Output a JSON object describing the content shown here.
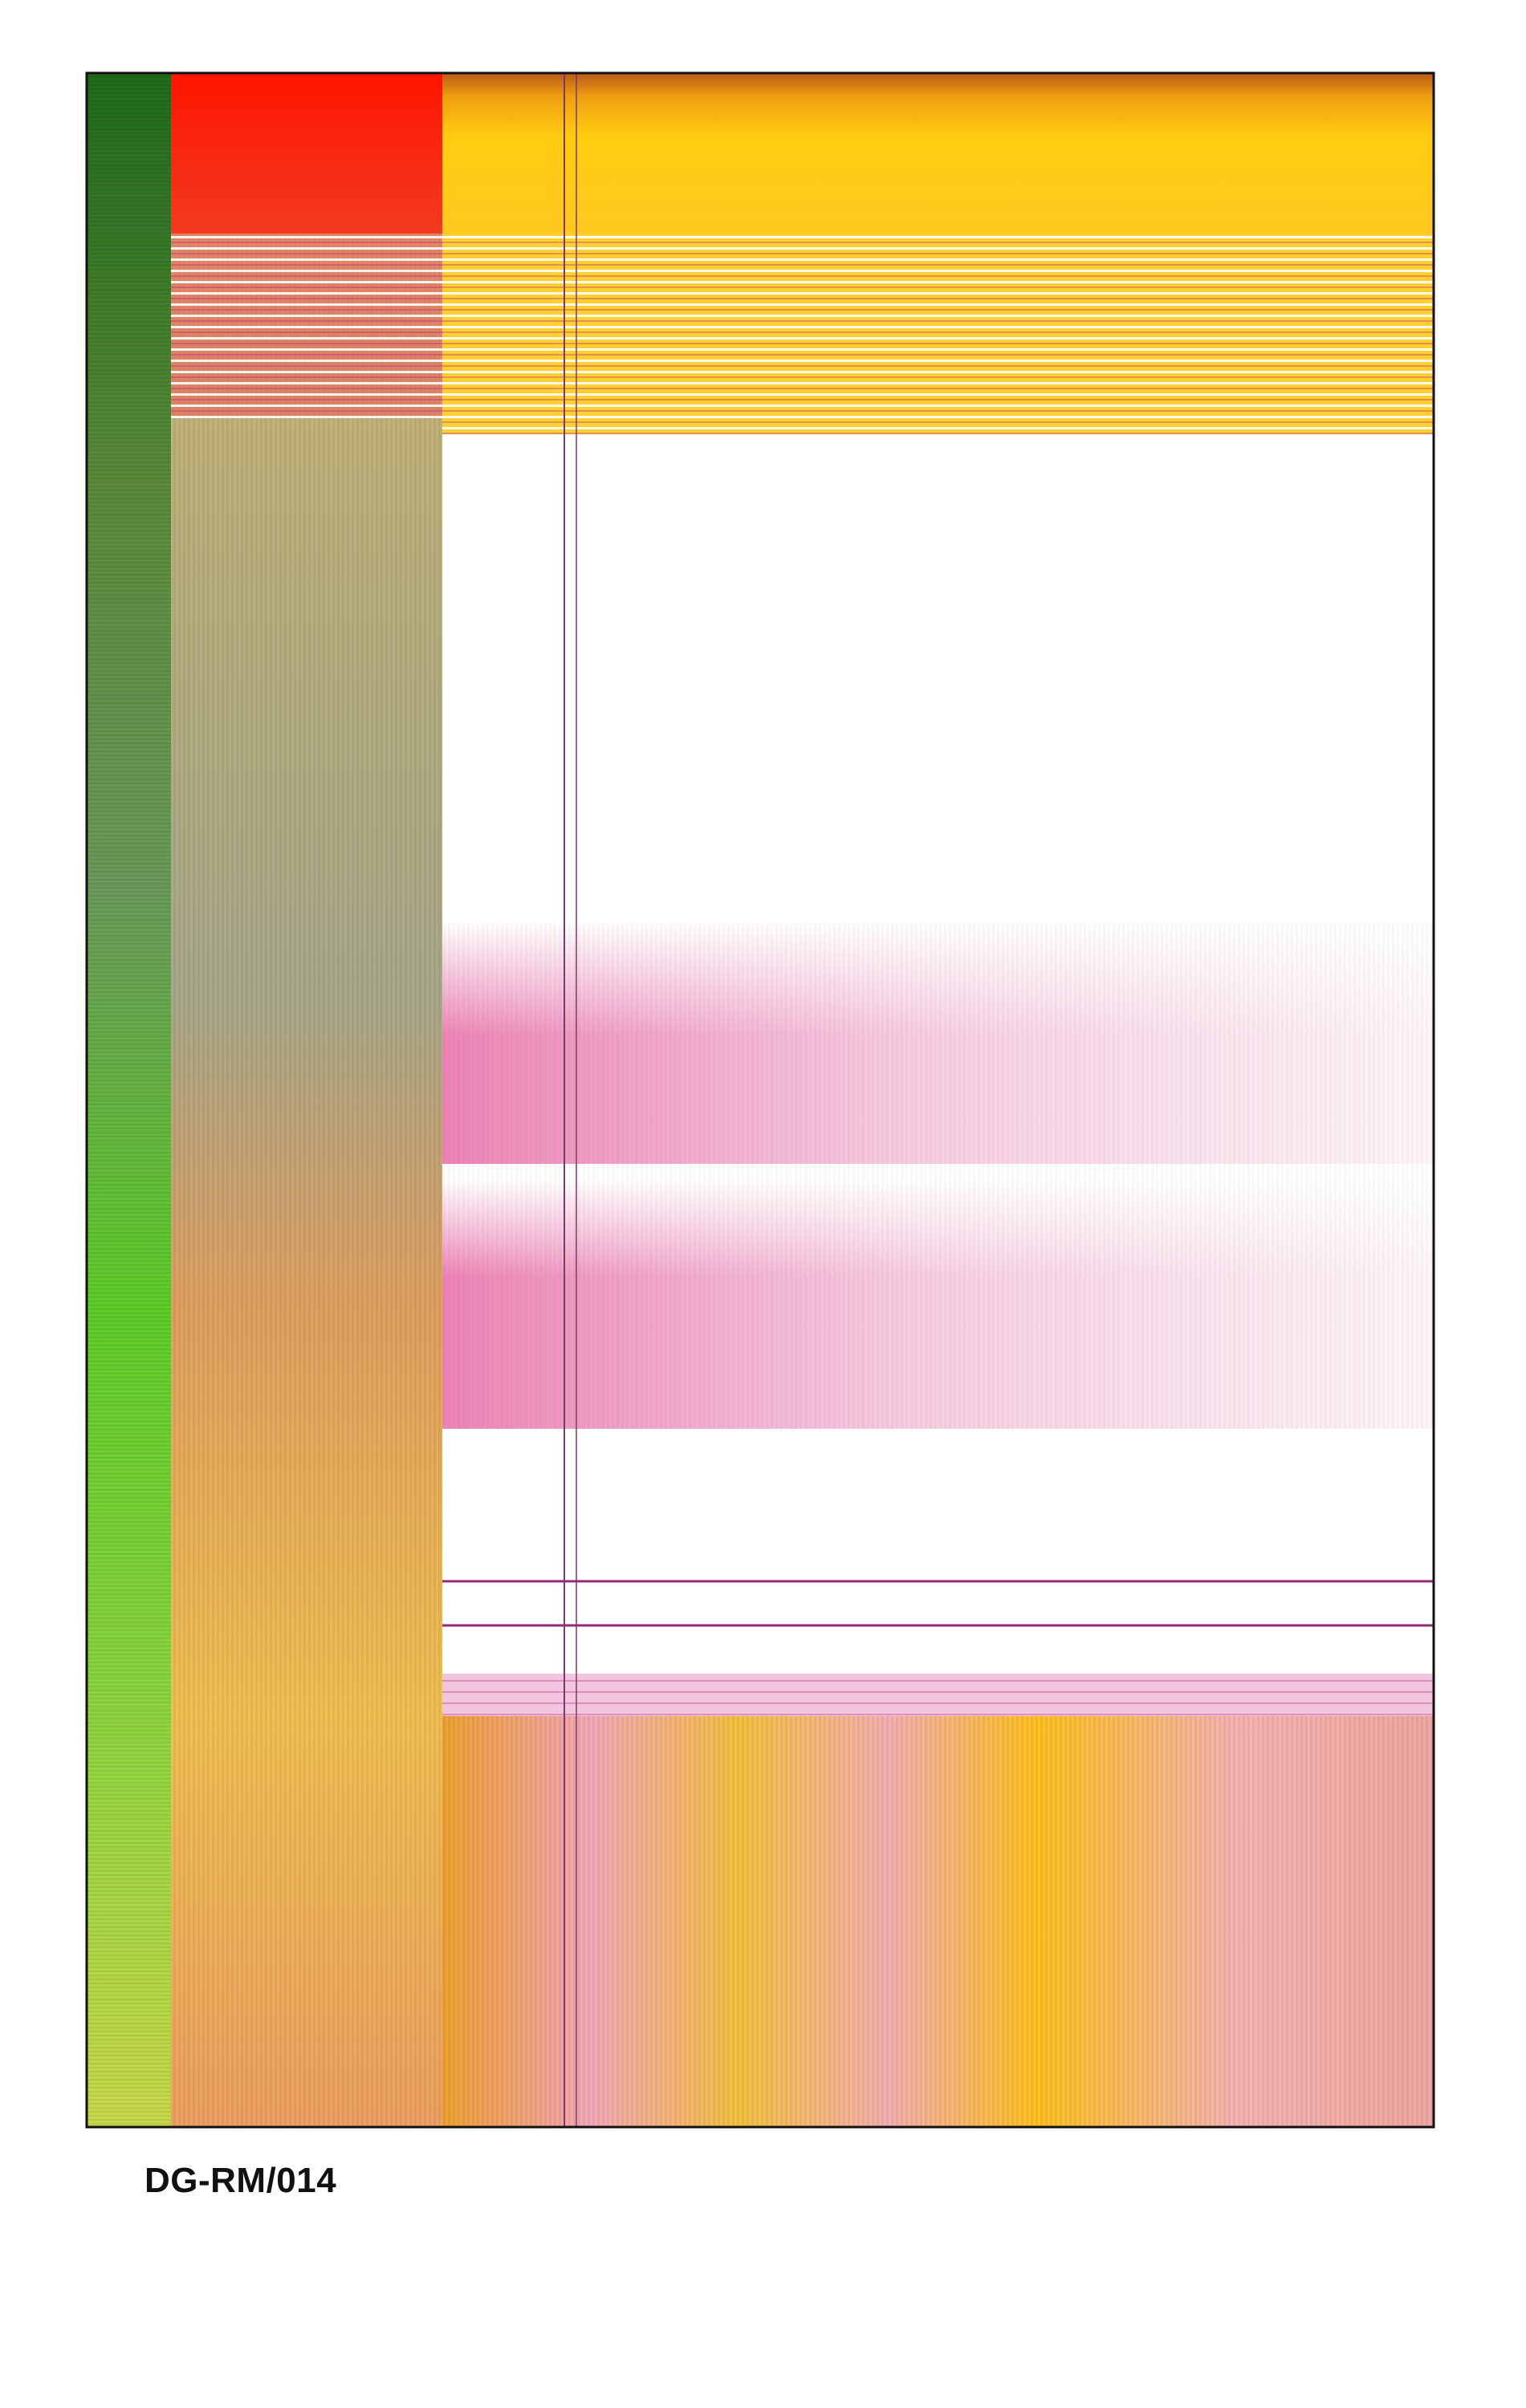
{
  "label": "DG-RM/014"
}
